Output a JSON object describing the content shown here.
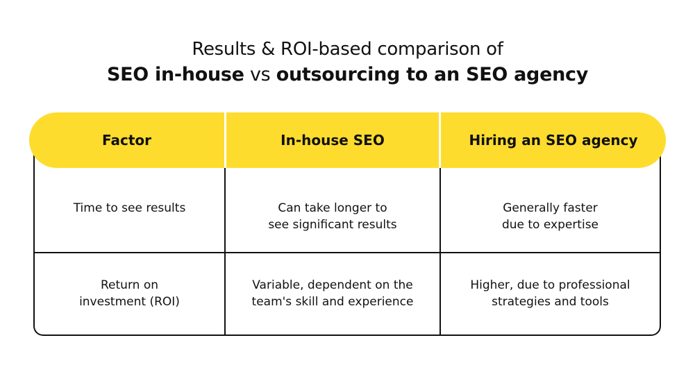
{
  "title": {
    "line1": "Results & ROI-based comparison of",
    "part_a": "SEO in-house",
    "vs": "vs",
    "part_b": "outsourcing to an SEO agency"
  },
  "colors": {
    "header_bg": "#fddc2e",
    "border": "#111111",
    "text": "#111111"
  },
  "table": {
    "headers": [
      "Factor",
      "In-house SEO",
      "Hiring an SEO agency"
    ],
    "rows": [
      {
        "factor": [
          "Time to see results"
        ],
        "inhouse": [
          "Can take longer to",
          "see significant results"
        ],
        "agency": [
          "Generally faster",
          "due to expertise"
        ]
      },
      {
        "factor": [
          "Return on",
          "investment (ROI)"
        ],
        "inhouse": [
          "Variable, dependent on the",
          "team's skill and experience"
        ],
        "agency": [
          "Higher, due to professional",
          "strategies and tools"
        ]
      }
    ]
  }
}
